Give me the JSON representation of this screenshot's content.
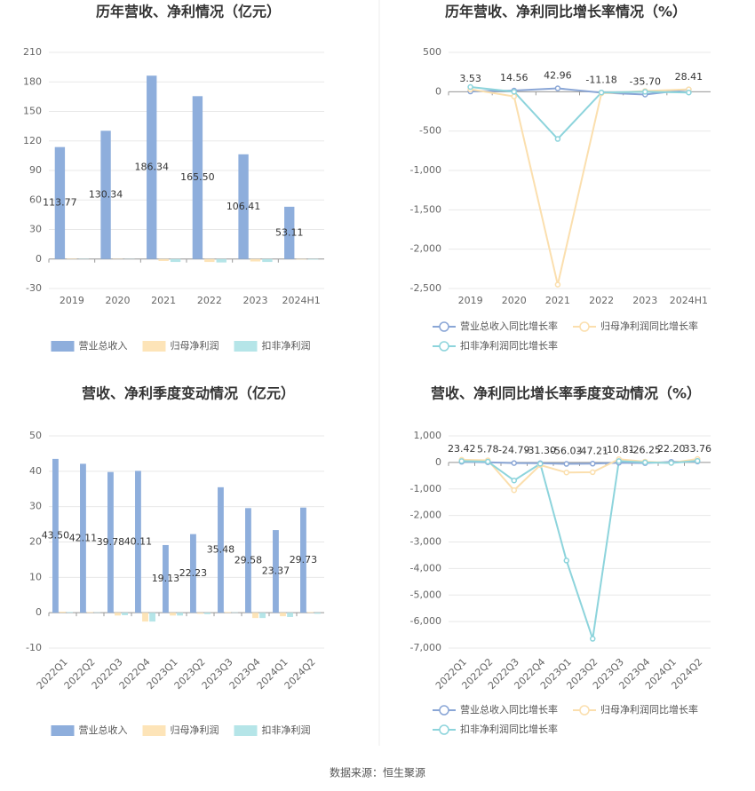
{
  "chart_data": [
    {
      "type": "bar",
      "title": "历年营收、净利情况（亿元）",
      "categories": [
        "2019",
        "2020",
        "2021",
        "2022",
        "2023",
        "2024H1"
      ],
      "series": [
        {
          "name": "营业总收入",
          "color": "#8eaedc",
          "values": [
            113.77,
            130.34,
            186.34,
            165.5,
            106.41,
            53.11
          ],
          "value_labels": [
            "113.77",
            "130.34",
            "186.34",
            "165.50",
            "106.41",
            "53.11"
          ]
        },
        {
          "name": "归母净利润",
          "color": "#fde4b8",
          "values": [
            0.5,
            0.3,
            -2.0,
            -3.0,
            -2.5,
            -0.5
          ]
        },
        {
          "name": "扣非净利润",
          "color": "#b5e5e8",
          "values": [
            0.3,
            0.2,
            -3.0,
            -3.5,
            -3.0,
            -0.6
          ]
        }
      ],
      "ylim": [
        -30,
        210
      ],
      "yticks": [
        -30,
        0,
        30,
        60,
        90,
        120,
        150,
        180,
        210
      ],
      "grid": true
    },
    {
      "type": "line",
      "title": "历年营收、净利同比增长率情况（%）",
      "categories": [
        "2019",
        "2020",
        "2021",
        "2022",
        "2023",
        "2024H1"
      ],
      "series": [
        {
          "name": "营业总收入同比增长率",
          "color": "#8aa6d6",
          "values": [
            3.53,
            14.56,
            42.96,
            -11.18,
            -35.7,
            28.41
          ],
          "value_labels": [
            "3.53",
            "14.56",
            "42.96",
            "-11.18",
            "-35.70",
            "28.41"
          ]
        },
        {
          "name": "归母净利润同比增长率",
          "color": "#fbdfae",
          "values": [
            30,
            -60,
            -2450,
            -20,
            10,
            30
          ]
        },
        {
          "name": "扣非净利润同比增长率",
          "color": "#8dd4dc",
          "values": [
            60,
            0,
            -600,
            -10,
            0,
            -10
          ]
        }
      ],
      "ylim": [
        -2500,
        500
      ],
      "yticks": [
        {
          "value": -2500,
          "label": "-2,500"
        },
        {
          "value": -2000,
          "label": "-2,000"
        },
        {
          "value": -1500,
          "label": "-1,500"
        },
        {
          "value": -1000,
          "label": "-1,000"
        },
        -500,
        0,
        500
      ],
      "grid": true
    },
    {
      "type": "bar",
      "title": "营收、净利季度变动情况（亿元）",
      "categories": [
        "2022Q1",
        "2022Q2",
        "2022Q3",
        "2022Q4",
        "2023Q1",
        "2023Q2",
        "2023Q3",
        "2023Q4",
        "2024Q1",
        "2024Q2"
      ],
      "series": [
        {
          "name": "营业总收入",
          "color": "#8eaedc",
          "values": [
            43.5,
            42.11,
            39.78,
            40.11,
            19.13,
            22.23,
            35.48,
            29.58,
            23.37,
            29.73
          ],
          "value_labels": [
            "43.50",
            "42.11",
            "39.78",
            "40.11",
            "19.13",
            "22.23",
            "35.48",
            "29.58",
            "23.37",
            "29.73"
          ]
        },
        {
          "name": "归母净利润",
          "color": "#fde4b8",
          "values": [
            0.3,
            0.2,
            -0.8,
            -2.5,
            -0.8,
            -0.3,
            0.2,
            -1.5,
            -1.0,
            0.2
          ]
        },
        {
          "name": "扣非净利润",
          "color": "#b5e5e8",
          "values": [
            0.2,
            0.1,
            -0.7,
            -2.5,
            -0.8,
            -0.4,
            0.1,
            -1.5,
            -1.2,
            -0.3
          ]
        }
      ],
      "ylim": [
        -10,
        50
      ],
      "yticks": [
        -10,
        0,
        10,
        20,
        30,
        40,
        50
      ],
      "grid": true
    },
    {
      "type": "line",
      "title": "营收、净利同比增长率季度变动情况（%）",
      "categories": [
        "2022Q1",
        "2022Q2",
        "2022Q3",
        "2022Q4",
        "2023Q1",
        "2023Q2",
        "2023Q3",
        "2023Q4",
        "2024Q1",
        "2024Q2"
      ],
      "series": [
        {
          "name": "营业总收入同比增长率",
          "color": "#8aa6d6",
          "values": [
            23.42,
            5.78,
            -24.79,
            -31.3,
            -56.03,
            -47.21,
            -10.81,
            -26.25,
            22.2,
            33.76
          ],
          "value_labels": [
            "23.42",
            "5.78",
            "-24.79",
            "-31.30",
            "-56.03",
            "-47.21",
            "-10.81",
            "-26.25",
            "22.20",
            "33.76"
          ]
        },
        {
          "name": "归母净利润同比增长率",
          "color": "#fbdfae",
          "values": [
            100,
            80,
            -1050,
            -100,
            -380,
            -370,
            120,
            30,
            -20,
            130
          ]
        },
        {
          "name": "扣非净利润同比增长率",
          "color": "#8dd4dc",
          "values": [
            50,
            30,
            -680,
            -50,
            -3700,
            -6650,
            50,
            0,
            -20,
            60
          ]
        }
      ],
      "ylim": [
        -7000,
        1000
      ],
      "yticks": [
        {
          "value": -7000,
          "label": "-7,000"
        },
        {
          "value": -6000,
          "label": "-6,000"
        },
        {
          "value": -5000,
          "label": "-5,000"
        },
        {
          "value": -4000,
          "label": "-4,000"
        },
        {
          "value": -3000,
          "label": "-3,000"
        },
        {
          "value": -2000,
          "label": "-2,000"
        },
        {
          "value": -1000,
          "label": "-1,000"
        },
        0,
        {
          "value": 1000,
          "label": "1,000"
        }
      ],
      "grid": true
    }
  ],
  "source": "数据来源：恒生聚源"
}
